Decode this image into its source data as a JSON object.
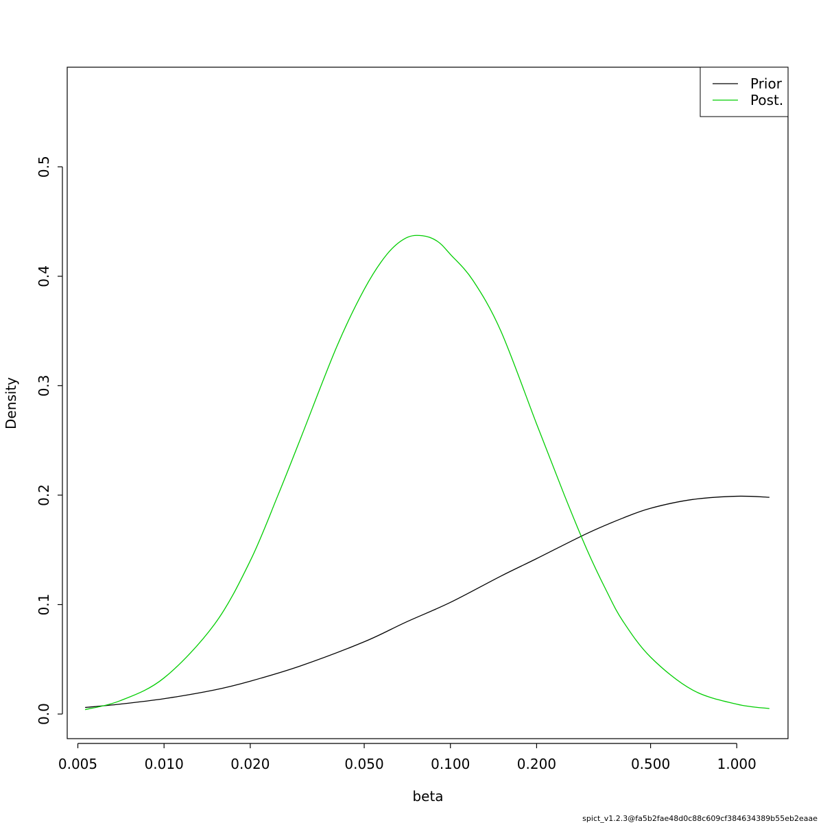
{
  "chart_data": {
    "type": "line",
    "title": "",
    "xlabel": "beta",
    "ylabel": "Density",
    "x_scale": "log",
    "xlim": [
      0.00459,
      1.51
    ],
    "ylim": [
      -0.0225,
      0.591
    ],
    "x_ticks": [
      0.005,
      0.01,
      0.02,
      0.05,
      0.1,
      0.2,
      0.5,
      1.0
    ],
    "x_tick_labels": [
      "0.005",
      "0.010",
      "0.020",
      "0.050",
      "0.100",
      "0.200",
      "0.500",
      "1.000"
    ],
    "y_ticks": [
      0.0,
      0.1,
      0.2,
      0.3,
      0.4,
      0.5
    ],
    "y_tick_labels": [
      "0.0",
      "0.1",
      "0.2",
      "0.3",
      "0.4",
      "0.5"
    ],
    "grid": false,
    "legend_position": "top-right",
    "series": [
      {
        "name": "Prior",
        "color": "#000000",
        "x": [
          0.0053,
          0.007,
          0.01,
          0.015,
          0.02,
          0.03,
          0.05,
          0.07,
          0.1,
          0.15,
          0.2,
          0.3,
          0.4,
          0.5,
          0.7,
          1.0,
          1.3
        ],
        "y": [
          0.006,
          0.009,
          0.014,
          0.022,
          0.03,
          0.044,
          0.066,
          0.084,
          0.102,
          0.126,
          0.142,
          0.165,
          0.179,
          0.188,
          0.196,
          0.199,
          0.198
        ]
      },
      {
        "name": "Post.",
        "color": "#00cd00",
        "x": [
          0.0053,
          0.007,
          0.01,
          0.015,
          0.02,
          0.025,
          0.03,
          0.04,
          0.05,
          0.06,
          0.07,
          0.08,
          0.09,
          0.1,
          0.12,
          0.15,
          0.2,
          0.25,
          0.3,
          0.35,
          0.4,
          0.5,
          0.7,
          1.0,
          1.3
        ],
        "y": [
          0.004,
          0.012,
          0.033,
          0.082,
          0.14,
          0.2,
          0.252,
          0.335,
          0.388,
          0.42,
          0.435,
          0.437,
          0.432,
          0.42,
          0.396,
          0.35,
          0.265,
          0.2,
          0.15,
          0.113,
          0.085,
          0.052,
          0.022,
          0.009,
          0.005
        ]
      }
    ]
  },
  "footer": {
    "text": "spict_v1.2.3@fa5b2fae48d0c88c609cf384634389b55eb2eaae"
  }
}
